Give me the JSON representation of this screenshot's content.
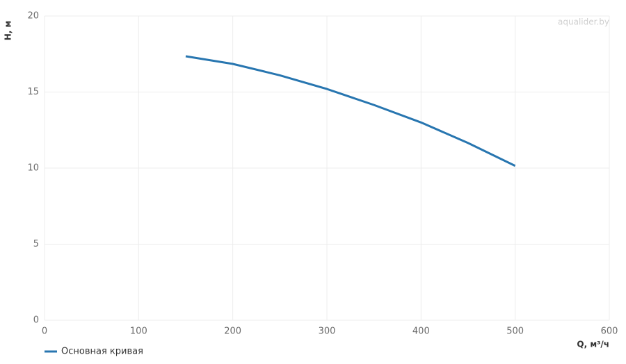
{
  "chart_data": {
    "type": "line",
    "watermark": "aqualider.by",
    "x_label": "Q, м³/ч",
    "y_label": "H, м",
    "x": [
      150,
      200,
      250,
      300,
      350,
      400,
      450,
      500
    ],
    "series": [
      {
        "name": "Основная кривая",
        "color": "#2876b0",
        "values": [
          17.35,
          16.85,
          16.1,
          15.2,
          14.15,
          13.0,
          11.65,
          10.15
        ]
      }
    ],
    "xlim": [
      0,
      600
    ],
    "xticks": [
      0,
      100,
      200,
      300,
      400,
      500,
      600
    ],
    "ylim": [
      0,
      20
    ],
    "yticks": [
      0,
      5,
      10,
      15,
      20
    ],
    "grid": true,
    "legend": "bottom-left"
  }
}
